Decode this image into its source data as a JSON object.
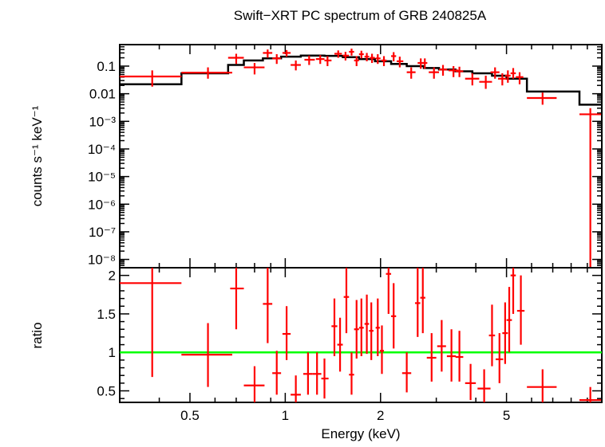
{
  "chart_data": {
    "type": "scatter",
    "title": "Swift−XRT PC spectrum of GRB 240825A",
    "xlabel": "Energy (keV)",
    "xscale": "log",
    "xlim": [
      0.3,
      10
    ],
    "x_ticks": [
      {
        "v": 0.5,
        "label": "0.5"
      },
      {
        "v": 1,
        "label": "1"
      },
      {
        "v": 2,
        "label": "2"
      },
      {
        "v": 5,
        "label": "5"
      }
    ],
    "colors": {
      "data": "#ff0000",
      "model": "#000000",
      "unity": "#00ff00"
    },
    "top": {
      "ylabel": "counts s⁻¹ keV⁻¹",
      "yscale": "log",
      "ylim": [
        5e-09,
        0.6
      ],
      "y_ticks": [
        {
          "v": 0.1,
          "label": "0.1"
        },
        {
          "v": 0.01,
          "label": "0.01"
        },
        {
          "v": 0.001,
          "label": "10⁻³"
        },
        {
          "v": 0.0001,
          "label": "10⁻⁴"
        },
        {
          "v": 1e-05,
          "label": "10⁻⁵"
        },
        {
          "v": 1e-06,
          "label": "10⁻⁶"
        },
        {
          "v": 1e-07,
          "label": "10⁻⁷"
        },
        {
          "v": 1e-08,
          "label": "10⁻⁸"
        }
      ],
      "data": [
        {
          "x": 0.38,
          "xl": 0.3,
          "xh": 0.47,
          "y": 0.042,
          "yl": 0.018,
          "yh": 0.07
        },
        {
          "x": 0.57,
          "xl": 0.47,
          "xh": 0.68,
          "y": 0.058,
          "yl": 0.035,
          "yh": 0.09
        },
        {
          "x": 0.7,
          "xl": 0.66,
          "xh": 0.74,
          "y": 0.2,
          "yl": 0.12,
          "yh": 0.28
        },
        {
          "x": 0.8,
          "xl": 0.74,
          "xh": 0.86,
          "y": 0.09,
          "yl": 0.05,
          "yh": 0.13
        },
        {
          "x": 0.88,
          "xl": 0.85,
          "xh": 0.91,
          "y": 0.3,
          "yl": 0.2,
          "yh": 0.4
        },
        {
          "x": 0.94,
          "xl": 0.91,
          "xh": 0.97,
          "y": 0.19,
          "yl": 0.12,
          "yh": 0.27
        },
        {
          "x": 1.01,
          "xl": 0.98,
          "xh": 1.04,
          "y": 0.3,
          "yl": 0.22,
          "yh": 0.38
        },
        {
          "x": 1.08,
          "xl": 1.04,
          "xh": 1.12,
          "y": 0.11,
          "yl": 0.07,
          "yh": 0.16
        },
        {
          "x": 1.19,
          "xl": 1.15,
          "xh": 1.24,
          "y": 0.17,
          "yl": 0.11,
          "yh": 0.24
        },
        {
          "x": 1.29,
          "xl": 1.25,
          "xh": 1.33,
          "y": 0.18,
          "yl": 0.12,
          "yh": 0.25
        },
        {
          "x": 1.36,
          "xl": 1.33,
          "xh": 1.4,
          "y": 0.16,
          "yl": 0.1,
          "yh": 0.23
        },
        {
          "x": 1.47,
          "xl": 1.43,
          "xh": 1.51,
          "y": 0.28,
          "yl": 0.2,
          "yh": 0.37
        },
        {
          "x": 1.55,
          "xl": 1.52,
          "xh": 1.59,
          "y": 0.24,
          "yl": 0.16,
          "yh": 0.33
        },
        {
          "x": 1.62,
          "xl": 1.59,
          "xh": 1.65,
          "y": 0.33,
          "yl": 0.24,
          "yh": 0.43
        },
        {
          "x": 1.68,
          "xl": 1.65,
          "xh": 1.71,
          "y": 0.16,
          "yl": 0.1,
          "yh": 0.23
        },
        {
          "x": 1.74,
          "xl": 1.71,
          "xh": 1.77,
          "y": 0.27,
          "yl": 0.19,
          "yh": 0.36
        },
        {
          "x": 1.81,
          "xl": 1.78,
          "xh": 1.84,
          "y": 0.22,
          "yl": 0.15,
          "yh": 0.3
        },
        {
          "x": 1.88,
          "xl": 1.85,
          "xh": 1.92,
          "y": 0.2,
          "yl": 0.13,
          "yh": 0.28
        },
        {
          "x": 1.96,
          "xl": 1.93,
          "xh": 2.0,
          "y": 0.19,
          "yl": 0.12,
          "yh": 0.27
        },
        {
          "x": 2.05,
          "xl": 2.01,
          "xh": 2.09,
          "y": 0.16,
          "yl": 0.1,
          "yh": 0.23
        },
        {
          "x": 2.2,
          "xl": 2.16,
          "xh": 2.24,
          "y": 0.23,
          "yl": 0.15,
          "yh": 0.32
        },
        {
          "x": 2.3,
          "xl": 2.25,
          "xh": 2.36,
          "y": 0.15,
          "yl": 0.09,
          "yh": 0.22
        },
        {
          "x": 2.5,
          "xl": 2.42,
          "xh": 2.58,
          "y": 0.06,
          "yl": 0.035,
          "yh": 0.09
        },
        {
          "x": 2.68,
          "xl": 2.62,
          "xh": 2.74,
          "y": 0.13,
          "yl": 0.08,
          "yh": 0.19
        },
        {
          "x": 2.76,
          "xl": 2.71,
          "xh": 2.81,
          "y": 0.13,
          "yl": 0.08,
          "yh": 0.19
        },
        {
          "x": 2.95,
          "xl": 2.84,
          "xh": 3.06,
          "y": 0.06,
          "yl": 0.035,
          "yh": 0.09
        },
        {
          "x": 3.15,
          "xl": 3.06,
          "xh": 3.25,
          "y": 0.075,
          "yl": 0.045,
          "yh": 0.11
        },
        {
          "x": 3.4,
          "xl": 3.28,
          "xh": 3.52,
          "y": 0.07,
          "yl": 0.04,
          "yh": 0.1
        },
        {
          "x": 3.55,
          "xl": 3.45,
          "xh": 3.65,
          "y": 0.065,
          "yl": 0.04,
          "yh": 0.095
        },
        {
          "x": 3.9,
          "xl": 3.7,
          "xh": 4.1,
          "y": 0.035,
          "yl": 0.02,
          "yh": 0.055
        },
        {
          "x": 4.3,
          "xl": 4.1,
          "xh": 4.5,
          "y": 0.027,
          "yl": 0.015,
          "yh": 0.045
        },
        {
          "x": 4.6,
          "xl": 4.45,
          "xh": 4.75,
          "y": 0.06,
          "yl": 0.035,
          "yh": 0.09
        },
        {
          "x": 4.85,
          "xl": 4.7,
          "xh": 5.0,
          "y": 0.035,
          "yl": 0.02,
          "yh": 0.055
        },
        {
          "x": 5.05,
          "xl": 4.95,
          "xh": 5.15,
          "y": 0.045,
          "yl": 0.025,
          "yh": 0.07
        },
        {
          "x": 5.25,
          "xl": 5.15,
          "xh": 5.35,
          "y": 0.055,
          "yl": 0.035,
          "yh": 0.085
        },
        {
          "x": 5.5,
          "xl": 5.35,
          "xh": 5.65,
          "y": 0.04,
          "yl": 0.022,
          "yh": 0.06
        },
        {
          "x": 6.5,
          "xl": 5.8,
          "xh": 7.2,
          "y": 0.007,
          "yl": 0.004,
          "yh": 0.011
        },
        {
          "x": 9.2,
          "xl": 8.5,
          "xh": 9.95,
          "y": 0.0018,
          "yl": 1e-09,
          "yh": 0.003
        }
      ],
      "model": [
        {
          "xl": 0.3,
          "xh": 0.47,
          "y": 0.022
        },
        {
          "xl": 0.47,
          "xh": 0.66,
          "y": 0.055
        },
        {
          "xl": 0.66,
          "xh": 0.74,
          "y": 0.11
        },
        {
          "xl": 0.74,
          "xh": 0.85,
          "y": 0.16
        },
        {
          "xl": 0.85,
          "xh": 0.97,
          "y": 0.19
        },
        {
          "xl": 0.97,
          "xh": 1.12,
          "y": 0.22
        },
        {
          "xl": 1.12,
          "xh": 1.33,
          "y": 0.24
        },
        {
          "xl": 1.33,
          "xh": 1.52,
          "y": 0.235
        },
        {
          "xl": 1.52,
          "xh": 1.71,
          "y": 0.21
        },
        {
          "xl": 1.71,
          "xh": 1.92,
          "y": 0.18
        },
        {
          "xl": 1.92,
          "xh": 2.16,
          "y": 0.15
        },
        {
          "xl": 2.16,
          "xh": 2.42,
          "y": 0.12
        },
        {
          "xl": 2.42,
          "xh": 2.74,
          "y": 0.1
        },
        {
          "xl": 2.74,
          "xh": 3.06,
          "y": 0.085
        },
        {
          "xl": 3.06,
          "xh": 3.45,
          "y": 0.075
        },
        {
          "xl": 3.45,
          "xh": 3.9,
          "y": 0.065
        },
        {
          "xl": 3.9,
          "xh": 4.5,
          "y": 0.055
        },
        {
          "xl": 4.5,
          "xh": 5.0,
          "y": 0.045
        },
        {
          "xl": 5.0,
          "xh": 5.8,
          "y": 0.035
        },
        {
          "xl": 5.8,
          "xh": 8.5,
          "y": 0.012
        },
        {
          "xl": 8.5,
          "xh": 10.0,
          "y": 0.004
        }
      ]
    },
    "bottom": {
      "ylabel": "ratio",
      "yscale": "linear",
      "ylim": [
        0.35,
        2.1
      ],
      "y_ticks": [
        {
          "v": 0.5,
          "label": "0.5"
        },
        {
          "v": 1,
          "label": "1"
        },
        {
          "v": 1.5,
          "label": "1.5"
        },
        {
          "v": 2,
          "label": "2"
        }
      ],
      "unity": 1,
      "data": [
        {
          "x": 0.38,
          "xl": 0.3,
          "xh": 0.47,
          "y": 1.9,
          "yl": 0.68,
          "yh": 2.1
        },
        {
          "x": 0.57,
          "xl": 0.47,
          "xh": 0.68,
          "y": 0.97,
          "yl": 0.55,
          "yh": 1.38
        },
        {
          "x": 0.7,
          "xl": 0.67,
          "xh": 0.74,
          "y": 1.83,
          "yl": 1.3,
          "yh": 2.1
        },
        {
          "x": 0.8,
          "xl": 0.74,
          "xh": 0.86,
          "y": 0.57,
          "yl": 0.35,
          "yh": 0.82
        },
        {
          "x": 0.88,
          "xl": 0.85,
          "xh": 0.91,
          "y": 1.63,
          "yl": 1.12,
          "yh": 2.1
        },
        {
          "x": 0.94,
          "xl": 0.91,
          "xh": 0.97,
          "y": 0.73,
          "yl": 0.45,
          "yh": 1.02
        },
        {
          "x": 1.01,
          "xl": 0.98,
          "xh": 1.04,
          "y": 1.24,
          "yl": 0.9,
          "yh": 1.6
        },
        {
          "x": 1.08,
          "xl": 1.04,
          "xh": 1.12,
          "y": 0.45,
          "yl": 0.35,
          "yh": 0.7
        },
        {
          "x": 1.18,
          "xl": 1.14,
          "xh": 1.22,
          "y": 0.72,
          "yl": 0.45,
          "yh": 1.0
        },
        {
          "x": 1.26,
          "xl": 1.22,
          "xh": 1.3,
          "y": 0.72,
          "yl": 0.45,
          "yh": 1.0
        },
        {
          "x": 1.33,
          "xl": 1.3,
          "xh": 1.37,
          "y": 0.66,
          "yl": 0.4,
          "yh": 0.92
        },
        {
          "x": 1.43,
          "xl": 1.4,
          "xh": 1.46,
          "y": 1.34,
          "yl": 0.95,
          "yh": 1.7
        },
        {
          "x": 1.49,
          "xl": 1.46,
          "xh": 1.52,
          "y": 1.1,
          "yl": 0.75,
          "yh": 1.45
        },
        {
          "x": 1.56,
          "xl": 1.53,
          "xh": 1.59,
          "y": 1.72,
          "yl": 1.25,
          "yh": 2.1
        },
        {
          "x": 1.62,
          "xl": 1.59,
          "xh": 1.65,
          "y": 0.71,
          "yl": 0.45,
          "yh": 1.0
        },
        {
          "x": 1.68,
          "xl": 1.65,
          "xh": 1.71,
          "y": 1.3,
          "yl": 0.92,
          "yh": 1.68
        },
        {
          "x": 1.74,
          "xl": 1.71,
          "xh": 1.77,
          "y": 1.32,
          "yl": 0.95,
          "yh": 1.7
        },
        {
          "x": 1.81,
          "xl": 1.78,
          "xh": 1.84,
          "y": 1.37,
          "yl": 0.98,
          "yh": 1.75
        },
        {
          "x": 1.87,
          "xl": 1.84,
          "xh": 1.9,
          "y": 1.28,
          "yl": 0.9,
          "yh": 1.65
        },
        {
          "x": 1.96,
          "xl": 1.93,
          "xh": 1.99,
          "y": 1.32,
          "yl": 0.95,
          "yh": 1.7
        },
        {
          "x": 2.02,
          "xl": 1.99,
          "xh": 2.05,
          "y": 1.02,
          "yl": 0.72,
          "yh": 1.35
        },
        {
          "x": 2.12,
          "xl": 2.08,
          "xh": 2.16,
          "y": 2.02,
          "yl": 1.5,
          "yh": 2.1
        },
        {
          "x": 2.2,
          "xl": 2.16,
          "xh": 2.24,
          "y": 1.47,
          "yl": 1.05,
          "yh": 1.9
        },
        {
          "x": 2.42,
          "xl": 2.34,
          "xh": 2.5,
          "y": 0.73,
          "yl": 0.48,
          "yh": 1.0
        },
        {
          "x": 2.62,
          "xl": 2.57,
          "xh": 2.67,
          "y": 1.64,
          "yl": 1.2,
          "yh": 2.1
        },
        {
          "x": 2.72,
          "xl": 2.67,
          "xh": 2.77,
          "y": 1.71,
          "yl": 1.25,
          "yh": 2.1
        },
        {
          "x": 2.9,
          "xl": 2.8,
          "xh": 3.0,
          "y": 0.93,
          "yl": 0.62,
          "yh": 1.25
        },
        {
          "x": 3.12,
          "xl": 3.02,
          "xh": 3.22,
          "y": 1.08,
          "yl": 0.75,
          "yh": 1.42
        },
        {
          "x": 3.35,
          "xl": 3.24,
          "xh": 3.46,
          "y": 0.95,
          "yl": 0.62,
          "yh": 1.3
        },
        {
          "x": 3.55,
          "xl": 3.45,
          "xh": 3.65,
          "y": 0.94,
          "yl": 0.62,
          "yh": 1.28
        },
        {
          "x": 3.85,
          "xl": 3.7,
          "xh": 4.0,
          "y": 0.6,
          "yl": 0.38,
          "yh": 0.85
        },
        {
          "x": 4.25,
          "xl": 4.05,
          "xh": 4.45,
          "y": 0.53,
          "yl": 0.35,
          "yh": 0.78
        },
        {
          "x": 4.5,
          "xl": 4.4,
          "xh": 4.6,
          "y": 1.22,
          "yl": 0.82,
          "yh": 1.62
        },
        {
          "x": 4.75,
          "xl": 4.62,
          "xh": 4.88,
          "y": 0.91,
          "yl": 0.6,
          "yh": 1.25
        },
        {
          "x": 4.95,
          "xl": 4.85,
          "xh": 5.05,
          "y": 1.25,
          "yl": 0.85,
          "yh": 1.65
        },
        {
          "x": 5.1,
          "xl": 5.0,
          "xh": 5.2,
          "y": 1.42,
          "yl": 1.0,
          "yh": 1.85
        },
        {
          "x": 5.25,
          "xl": 5.15,
          "xh": 5.35,
          "y": 2.0,
          "yl": 1.5,
          "yh": 2.1
        },
        {
          "x": 5.55,
          "xl": 5.4,
          "xh": 5.7,
          "y": 1.54,
          "yl": 1.1,
          "yh": 2.0
        },
        {
          "x": 6.5,
          "xl": 5.8,
          "xh": 7.2,
          "y": 0.55,
          "yl": 0.35,
          "yh": 0.78
        },
        {
          "x": 9.2,
          "xl": 8.5,
          "xh": 9.95,
          "y": 0.38,
          "yl": 0.35,
          "yh": 0.55
        }
      ]
    }
  }
}
